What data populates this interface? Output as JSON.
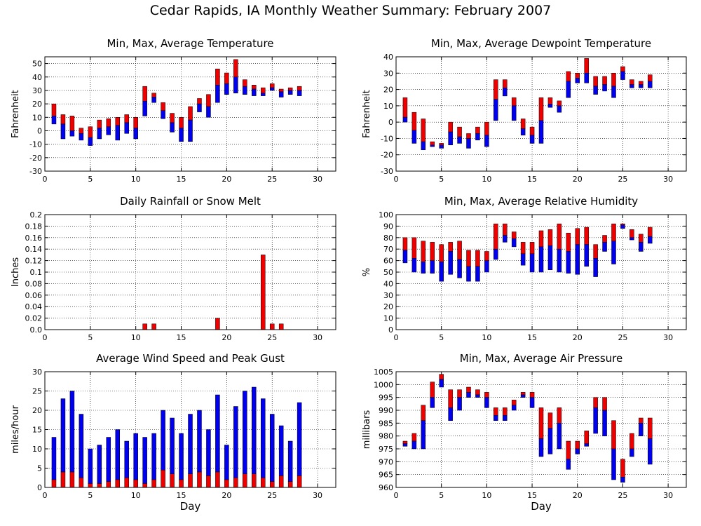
{
  "page_title": "Cedar Rapids, IA Monthly Weather Summary: February 2007",
  "colors": {
    "red": "#ee0000",
    "blue": "#0000ee",
    "grid": "#000000"
  },
  "chart_data": [
    {
      "id": "temperature",
      "type": "bar",
      "style": "minmaxavg",
      "title": "Min, Max, Average Temperature",
      "ylabel": "Fahrenheit",
      "xlabel": "",
      "xlim": [
        0,
        32
      ],
      "ylim": [
        -30,
        55
      ],
      "xticks": [
        0,
        5,
        10,
        15,
        20,
        25,
        30
      ],
      "yticks": [
        -30,
        -20,
        -10,
        0,
        10,
        20,
        30,
        40,
        50
      ],
      "days": [
        1,
        2,
        3,
        4,
        5,
        6,
        7,
        8,
        9,
        10,
        11,
        12,
        13,
        14,
        15,
        16,
        17,
        18,
        19,
        20,
        21,
        22,
        23,
        24,
        25,
        26,
        27,
        28
      ],
      "max": [
        20,
        12,
        11,
        2,
        3,
        8,
        9,
        10,
        12,
        10,
        33,
        28,
        21,
        13,
        10,
        18,
        24,
        27,
        46,
        43,
        53,
        38,
        34,
        32,
        35,
        31,
        32,
        33
      ],
      "avg": [
        11,
        5,
        0,
        -2,
        -5,
        2,
        3,
        4,
        6,
        2,
        22,
        25,
        15,
        6,
        2,
        8,
        20,
        18,
        34,
        35,
        40,
        33,
        31,
        28,
        32,
        29,
        30,
        30
      ],
      "min": [
        5,
        -6,
        -4,
        -7,
        -11,
        -6,
        -3,
        -7,
        -2,
        -6,
        11,
        21,
        9,
        -1,
        -8,
        -8,
        14,
        10,
        21,
        27,
        28,
        27,
        26,
        26,
        30,
        25,
        27,
        26
      ]
    },
    {
      "id": "dewpoint",
      "type": "bar",
      "style": "minmaxavg",
      "title": "Min, Max, Average Dewpoint Temperature",
      "ylabel": "Fahrenheit",
      "xlabel": "",
      "xlim": [
        0,
        32
      ],
      "ylim": [
        -30,
        40
      ],
      "xticks": [
        0,
        5,
        10,
        15,
        20,
        25,
        30
      ],
      "yticks": [
        -30,
        -20,
        -10,
        0,
        10,
        20,
        30,
        40
      ],
      "days": [
        1,
        2,
        3,
        4,
        5,
        6,
        7,
        8,
        9,
        10,
        11,
        12,
        13,
        14,
        15,
        16,
        17,
        18,
        19,
        20,
        21,
        22,
        23,
        24,
        25,
        26,
        27,
        28
      ],
      "max": [
        15,
        6,
        2,
        -12,
        -13,
        0,
        -3,
        -7,
        -3,
        0,
        26,
        26,
        15,
        2,
        -3,
        15,
        15,
        13,
        31,
        30,
        39,
        28,
        28,
        30,
        34,
        26,
        25,
        29
      ],
      "avg": [
        3,
        -5,
        -12,
        -14,
        -14,
        -6,
        -9,
        -10,
        -7,
        -8,
        14,
        21,
        10,
        -4,
        -8,
        1,
        11,
        10,
        25,
        27,
        30,
        22,
        23,
        22,
        31,
        23,
        23,
        25
      ],
      "min": [
        0,
        -13,
        -17,
        -15,
        -16,
        -14,
        -13,
        -16,
        -11,
        -15,
        1,
        16,
        1,
        -8,
        -13,
        -13,
        9,
        6,
        15,
        24,
        24,
        17,
        19,
        15,
        26,
        21,
        21,
        21
      ]
    },
    {
      "id": "rainfall",
      "type": "bar",
      "style": "simple",
      "title": "Daily Rainfall or Snow Melt",
      "ylabel": "Inches",
      "xlabel": "",
      "xlim": [
        0,
        32
      ],
      "ylim": [
        0,
        0.2
      ],
      "xticks": [
        0,
        5,
        10,
        15,
        20,
        25,
        30
      ],
      "yticks": [
        0,
        0.02,
        0.04,
        0.06,
        0.08,
        0.1,
        0.12,
        0.14,
        0.16,
        0.18,
        0.2
      ],
      "ytick_labels": [
        "0.0",
        "0.02",
        "0.04",
        "0.06",
        "0.08",
        "0.1",
        "0.12",
        "0.14",
        "0.16",
        "0.18",
        "0.2"
      ],
      "days": [
        1,
        2,
        3,
        4,
        5,
        6,
        7,
        8,
        9,
        10,
        11,
        12,
        13,
        14,
        15,
        16,
        17,
        18,
        19,
        20,
        21,
        22,
        23,
        24,
        25,
        26,
        27,
        28
      ],
      "values": [
        0,
        0,
        0,
        0,
        0,
        0,
        0,
        0,
        0,
        0,
        0.01,
        0.01,
        0,
        0,
        0,
        0,
        0,
        0,
        0.02,
        0,
        0,
        0,
        0,
        0.13,
        0.01,
        0.01,
        0,
        0
      ]
    },
    {
      "id": "humidity",
      "type": "bar",
      "style": "minmaxavg",
      "title": "Min, Max, Average Relative Humidity",
      "ylabel": "%",
      "xlabel": "",
      "xlim": [
        0,
        32
      ],
      "ylim": [
        0,
        100
      ],
      "xticks": [
        0,
        5,
        10,
        15,
        20,
        25,
        30
      ],
      "yticks": [
        0,
        10,
        20,
        30,
        40,
        50,
        60,
        70,
        80,
        90,
        100
      ],
      "days": [
        1,
        2,
        3,
        4,
        5,
        6,
        7,
        8,
        9,
        10,
        11,
        12,
        13,
        14,
        15,
        16,
        17,
        18,
        19,
        20,
        21,
        22,
        23,
        24,
        25,
        26,
        27,
        28
      ],
      "max": [
        80,
        80,
        77,
        76,
        74,
        76,
        77,
        69,
        69,
        68,
        92,
        92,
        85,
        76,
        76,
        86,
        87,
        92,
        84,
        88,
        89,
        74,
        82,
        92,
        92,
        87,
        83,
        89
      ],
      "avg": [
        69,
        62,
        59,
        60,
        59,
        68,
        61,
        55,
        55,
        60,
        70,
        82,
        79,
        66,
        66,
        72,
        73,
        70,
        68,
        74,
        74,
        62,
        76,
        77,
        91,
        80,
        76,
        81
      ],
      "min": [
        58,
        50,
        49,
        49,
        42,
        48,
        45,
        42,
        42,
        50,
        61,
        76,
        72,
        56,
        50,
        50,
        52,
        50,
        49,
        48,
        55,
        46,
        68,
        57,
        88,
        78,
        68,
        75
      ]
    },
    {
      "id": "wind",
      "type": "bar",
      "style": "wind",
      "title": "Average Wind Speed and Peak Gust",
      "ylabel": "miles/hour",
      "xlabel": "Day",
      "xlim": [
        0,
        32
      ],
      "ylim": [
        0,
        30
      ],
      "xticks": [
        0,
        5,
        10,
        15,
        20,
        25,
        30
      ],
      "yticks": [
        0,
        5,
        10,
        15,
        20,
        25,
        30
      ],
      "days": [
        1,
        2,
        3,
        4,
        5,
        6,
        7,
        8,
        9,
        10,
        11,
        12,
        13,
        14,
        15,
        16,
        17,
        18,
        19,
        20,
        21,
        22,
        23,
        24,
        25,
        26,
        27,
        28
      ],
      "gust": [
        13,
        23,
        25,
        19,
        10,
        11,
        13,
        15,
        12,
        14,
        13,
        14,
        20,
        18,
        14,
        19,
        20,
        15,
        24,
        11,
        21,
        25,
        26,
        23,
        19,
        16,
        12,
        22
      ],
      "avg": [
        2,
        4,
        4,
        2.5,
        1,
        1,
        1.5,
        2,
        2.5,
        2,
        1,
        2,
        4.5,
        3.5,
        2,
        3.5,
        4,
        3,
        4,
        2,
        2.5,
        3.5,
        3.5,
        2.5,
        1.5,
        3,
        1.5,
        3
      ]
    },
    {
      "id": "pressure",
      "type": "bar",
      "style": "minmaxavg",
      "title": "Min, Max, Average Air Pressure",
      "ylabel": "millibars",
      "xlabel": "Day",
      "xlim": [
        0,
        32
      ],
      "ylim": [
        960,
        1005
      ],
      "xticks": [
        0,
        5,
        10,
        15,
        20,
        25,
        30
      ],
      "yticks": [
        960,
        965,
        970,
        975,
        980,
        985,
        990,
        995,
        1000,
        1005
      ],
      "days": [
        1,
        2,
        3,
        4,
        5,
        6,
        7,
        8,
        9,
        10,
        11,
        12,
        13,
        14,
        15,
        16,
        17,
        18,
        19,
        20,
        21,
        22,
        23,
        24,
        25,
        26,
        27,
        28
      ],
      "max": [
        978,
        981,
        992,
        1001,
        1004,
        998,
        998,
        999,
        998,
        997,
        991,
        991,
        994,
        997,
        997,
        991,
        989,
        991,
        978,
        978,
        982,
        995,
        995,
        986,
        971,
        981,
        987,
        987
      ],
      "avg": [
        977,
        978,
        986,
        995,
        1002,
        991,
        995,
        997,
        996,
        995,
        988,
        988,
        992,
        996,
        995,
        979,
        983,
        985,
        971,
        975,
        977,
        991,
        990,
        975,
        964,
        975,
        985,
        979
      ],
      "min": [
        976,
        975,
        975,
        991,
        999,
        986,
        990,
        995,
        995,
        991,
        986,
        986,
        990,
        995,
        991,
        972,
        973,
        975,
        967,
        973,
        976,
        981,
        980,
        963,
        962,
        972,
        980,
        969
      ]
    }
  ]
}
